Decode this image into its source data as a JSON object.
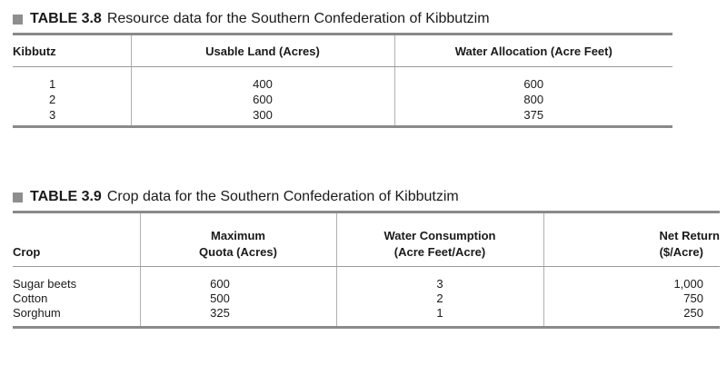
{
  "table_38": {
    "caption_number": "TABLE 3.8",
    "caption_title": "Resource data for the Southern Confederation of Kibbutzim",
    "headers": [
      "Kibbutz",
      "Usable Land (Acres)",
      "Water Allocation (Acre Feet)"
    ],
    "rows": [
      [
        "1",
        "400",
        "600"
      ],
      [
        "2",
        "600",
        "800"
      ],
      [
        "3",
        "300",
        "375"
      ]
    ]
  },
  "table_39": {
    "caption_number": "TABLE 3.9",
    "caption_title": "Crop data for the Southern Confederation of Kibbutzim",
    "headers": [
      {
        "line1": "",
        "line2": "Crop"
      },
      {
        "line1": "Maximum",
        "line2": "Quota (Acres)"
      },
      {
        "line1": "Water Consumption",
        "line2": "(Acre Feet/Acre)"
      },
      {
        "line1": "Net Return",
        "line2": "($/Acre)"
      }
    ],
    "rows": [
      [
        "Sugar beets",
        "600",
        "3",
        "1,000"
      ],
      [
        "Cotton",
        "500",
        "2",
        "750"
      ],
      [
        "Sorghum",
        "325",
        "1",
        "250"
      ]
    ]
  }
}
